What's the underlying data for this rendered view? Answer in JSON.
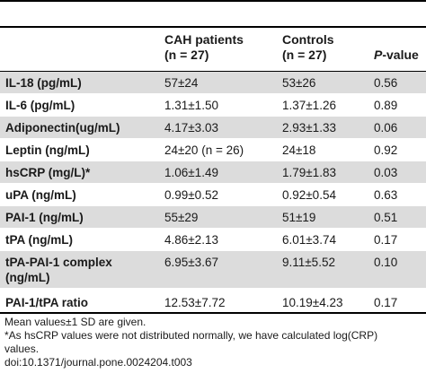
{
  "table": {
    "headers": {
      "parameter": "",
      "cah_line1": "CAH patients",
      "cah_line2": "(n = 27)",
      "controls_line1": "Controls",
      "controls_line2": "(n = 27)",
      "p_italic": "P",
      "p_rest": "-value"
    },
    "rows": [
      {
        "name": "IL-18 (pg/mL)",
        "cah": "57±24",
        "controls": "53±26",
        "p": "0.56"
      },
      {
        "name": "IL-6 (pg/mL)",
        "cah": "1.31±1.50",
        "controls": "1.37±1.26",
        "p": "0.89"
      },
      {
        "name": "Adiponectin(ug/mL)",
        "cah": "4.17±3.03",
        "controls": "2.93±1.33",
        "p": "0.06"
      },
      {
        "name": "Leptin (ng/mL)",
        "cah": "24±20 (n = 26)",
        "controls": "24±18",
        "p": "0.92"
      },
      {
        "name": "hsCRP (mg/L)*",
        "cah": "1.06±1.49",
        "controls": "1.79±1.83",
        "p": "0.03"
      },
      {
        "name": "uPA (ng/mL)",
        "cah": "0.99±0.52",
        "controls": "0.92±0.54",
        "p": "0.63"
      },
      {
        "name": "PAI-1 (ng/mL)",
        "cah": "55±29",
        "controls": "51±19",
        "p": "0.51"
      },
      {
        "name": "tPA (ng/mL)",
        "cah": "4.86±2.13",
        "controls": "6.01±3.74",
        "p": "0.17"
      },
      {
        "name_line1": "tPA-PAI-1 complex",
        "name_line2": "(ng/mL)",
        "cah": "6.95±3.67",
        "controls": "9.11±5.52",
        "p": "0.10"
      },
      {
        "name": "PAI-1/tPA ratio",
        "cah": "12.53±7.72",
        "controls": "10.19±4.23",
        "p": "0.17"
      }
    ]
  },
  "notes": {
    "line1": "Mean values±1 SD are given.",
    "line2": "*As hsCRP values were not distributed normally, we have calculated log(CRP)",
    "line3": "values.",
    "line4": "doi:10.1371/journal.pone.0024204.t003"
  }
}
